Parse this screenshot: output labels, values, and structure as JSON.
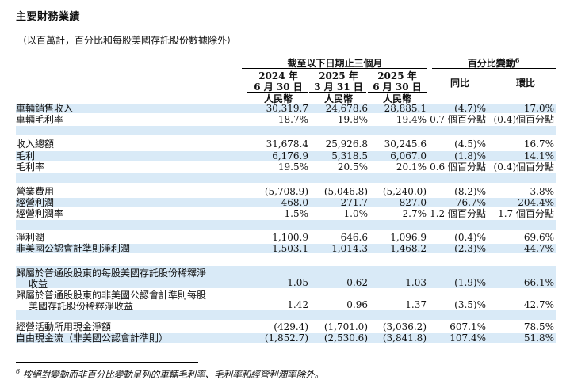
{
  "title": "主要財務業績",
  "note": "（以百萬計，百分比和每股美國存託股份數據除外）",
  "header": {
    "period_group": "截至以下日期止三個月",
    "change_group": "百分比變動",
    "change_footnote_mark": "6",
    "col1_year": "2024 年",
    "col1_date": "6 月 30 日",
    "col2_year": "2025 年",
    "col2_date": "3 月 31 日",
    "col3_year": "2025 年",
    "col3_date": "6 月 30 日",
    "yoy": "同比",
    "qoq": "環比",
    "currency": "人民幣"
  },
  "rows": [
    {
      "label": "車輛銷售收入",
      "c1": "30,319.7",
      "c2": "24,678.6",
      "c3": "28,885.1",
      "c4": "(4.7)%",
      "c5": "17.0%"
    },
    {
      "label": "車輛毛利率",
      "c1": "18.7%",
      "c2": "19.8%",
      "c3": "19.4%",
      "c4": "0.7 個百分點",
      "c5": "(0.4)個百分點"
    },
    {
      "label": "收入總額",
      "c1": "31,678.4",
      "c2": "25,926.8",
      "c3": "30,245.6",
      "c4": "(4.5)%",
      "c5": "16.7%"
    },
    {
      "label": "毛利",
      "c1": "6,176.9",
      "c2": "5,318.5",
      "c3": "6,067.0",
      "c4": "(1.8)%",
      "c5": "14.1%"
    },
    {
      "label": "毛利率",
      "c1": "19.5%",
      "c2": "20.5%",
      "c3": "20.1%",
      "c4": "0.6 個百分點",
      "c5": "(0.4)個百分點"
    },
    {
      "label": "營業費用",
      "c1": "(5,708.9)",
      "c2": "(5,046.8)",
      "c3": "(5,240.0)",
      "c4": "(8.2)%",
      "c5": "3.8%"
    },
    {
      "label": "經營利潤",
      "c1": "468.0",
      "c2": "271.7",
      "c3": "827.0",
      "c4": "76.7%",
      "c5": "204.4%"
    },
    {
      "label": "經營利潤率",
      "c1": "1.5%",
      "c2": "1.0%",
      "c3": "2.7%",
      "c4": "1.2 個百分點",
      "c5": "1.7 個百分點"
    },
    {
      "label": "淨利潤",
      "c1": "1,100.9",
      "c2": "646.6",
      "c3": "1,096.9",
      "c4": "(0.4)%",
      "c5": "69.6%"
    },
    {
      "label": "非美國公認會計準則淨利潤",
      "c1": "1,503.1",
      "c2": "1,014.3",
      "c3": "1,468.2",
      "c4": "(2.3)%",
      "c5": "44.7%"
    },
    {
      "label_1": "歸屬於普通股股東的每股美國存託股份稀釋淨",
      "label_2": "收益",
      "c1": "1.05",
      "c2": "0.62",
      "c3": "1.03",
      "c4": "(1.9)%",
      "c5": "66.1%"
    },
    {
      "label_1": "歸屬於普通股股東的非美國公認會計準則每股",
      "label_2": "美國存託股份稀釋淨收益",
      "c1": "1.42",
      "c2": "0.96",
      "c3": "1.37",
      "c4": "(3.5)%",
      "c5": "42.7%"
    },
    {
      "label": "經營活動所用現金淨額",
      "c1": "(429.4)",
      "c2": "(1,701.0)",
      "c3": "(3,036.2)",
      "c4": "607.1%",
      "c5": "78.5%"
    },
    {
      "label": "自由現金流（非美國公認會計準則）",
      "c1": "(1,852.7)",
      "c2": "(2,530.6)",
      "c3": "(3,841.8)",
      "c4": "107.4%",
      "c5": "51.8%"
    }
  ],
  "footnote_mark": "6",
  "footnote": "按絕對變動而非百分比變動呈列的車輛毛利率、毛利率和經營利潤率除外。"
}
